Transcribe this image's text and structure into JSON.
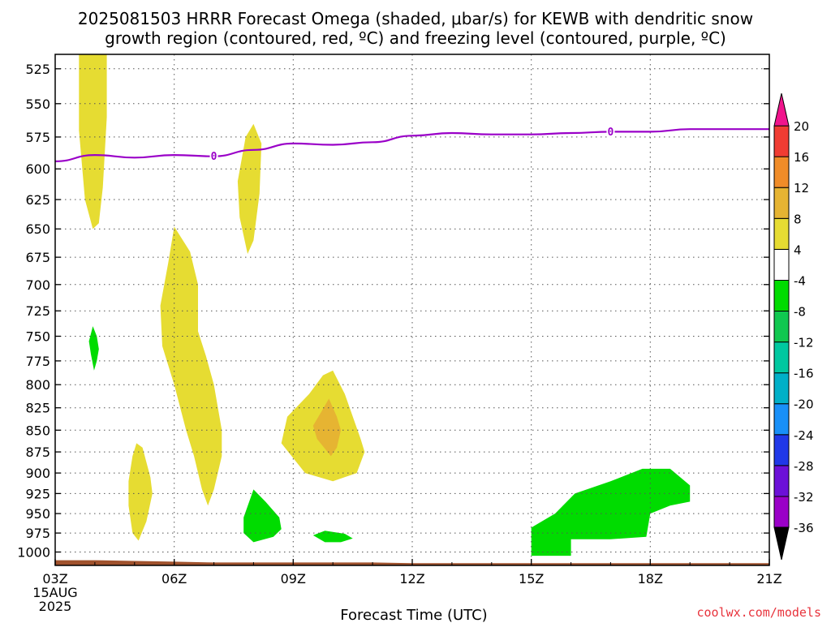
{
  "chart_data": {
    "type": "heatmap",
    "title_line1": "2025081503 HRRR Forecast Omega (shaded, μbar/s) for KEWB with dendritic snow",
    "title_line2": "growth region (contoured, red, ºC) and freezing level (contoured, purple, ºC)",
    "xlabel": "Forecast Time (UTC)",
    "credit": "coolwx.com/models",
    "x_ticks": [
      {
        "hour": 3,
        "label": "03Z",
        "sub1": "15AUG",
        "sub2": "2025"
      },
      {
        "hour": 6,
        "label": "06Z"
      },
      {
        "hour": 9,
        "label": "09Z"
      },
      {
        "hour": 12,
        "label": "12Z"
      },
      {
        "hour": 15,
        "label": "15Z"
      },
      {
        "hour": 18,
        "label": "18Z"
      },
      {
        "hour": 21,
        "label": "21Z"
      }
    ],
    "xlim_hours": [
      3,
      21
    ],
    "y_ticks": [
      525,
      550,
      575,
      600,
      625,
      650,
      675,
      700,
      725,
      750,
      775,
      800,
      825,
      850,
      875,
      900,
      925,
      950,
      975,
      1000
    ],
    "ylim_hPa": [
      1018,
      515
    ],
    "y_scale": "log-pressure (inverted)",
    "grid": true,
    "colorbar": {
      "levels": [
        -36,
        -32,
        -28,
        -24,
        -20,
        -16,
        -12,
        -8,
        -4,
        4,
        8,
        12,
        16,
        20
      ],
      "colors": [
        "#a0a0a0",
        "#9a00c8",
        "#6c10d8",
        "#2038e8",
        "#1890f8",
        "#00b0c8",
        "#00c8a0",
        "#10c850",
        "#00dc00",
        "#ffffff",
        "#e6dc32",
        "#e6b432",
        "#f08c28",
        "#f03c32",
        "#f0148c"
      ],
      "min_arrow_color": "#000000",
      "max_arrow_color": "#f0148c"
    },
    "freezing_level": {
      "label": "0",
      "color": "#9a00c8",
      "points": [
        [
          3,
          594
        ],
        [
          4,
          589
        ],
        [
          5,
          591
        ],
        [
          6,
          589
        ],
        [
          7,
          590
        ],
        [
          8,
          585
        ],
        [
          9,
          580
        ],
        [
          10,
          581
        ],
        [
          11,
          579
        ],
        [
          12,
          574
        ],
        [
          13,
          572
        ],
        [
          14,
          573
        ],
        [
          15,
          573
        ],
        [
          16,
          572
        ],
        [
          17,
          571
        ],
        [
          18,
          571
        ],
        [
          19,
          569
        ],
        [
          20,
          569
        ],
        [
          21,
          569
        ]
      ]
    },
    "omega_regions": [
      {
        "value_range": [
          4,
          8
        ],
        "color": "#e6dc32",
        "points": [
          [
            3.6,
            515
          ],
          [
            4.3,
            515
          ],
          [
            4.3,
            560
          ],
          [
            4.2,
            615
          ],
          [
            4.1,
            645
          ],
          [
            3.95,
            650
          ],
          [
            3.75,
            625
          ],
          [
            3.6,
            570
          ]
        ]
      },
      {
        "value_range": [
          4,
          8
        ],
        "color": "#e6dc32",
        "points": [
          [
            8.0,
            565
          ],
          [
            8.2,
            580
          ],
          [
            8.15,
            620
          ],
          [
            8.0,
            660
          ],
          [
            7.85,
            672
          ],
          [
            7.65,
            640
          ],
          [
            7.6,
            610
          ],
          [
            7.8,
            575
          ]
        ]
      },
      {
        "value_range": [
          4,
          8
        ],
        "color": "#e6dc32",
        "points": [
          [
            5.85,
            680
          ],
          [
            6.0,
            648
          ],
          [
            6.4,
            670
          ],
          [
            6.6,
            700
          ],
          [
            6.6,
            745
          ],
          [
            6.8,
            770
          ],
          [
            7.0,
            800
          ],
          [
            7.2,
            850
          ],
          [
            7.2,
            880
          ],
          [
            7.0,
            920
          ],
          [
            6.85,
            940
          ],
          [
            6.7,
            920
          ],
          [
            6.5,
            880
          ],
          [
            6.3,
            850
          ],
          [
            6.0,
            800
          ],
          [
            5.7,
            760
          ],
          [
            5.65,
            720
          ]
        ]
      },
      {
        "value_range": [
          4,
          8
        ],
        "color": "#e6dc32",
        "points": [
          [
            5.05,
            865
          ],
          [
            5.2,
            870
          ],
          [
            5.4,
            905
          ],
          [
            5.45,
            925
          ],
          [
            5.3,
            960
          ],
          [
            5.1,
            985
          ],
          [
            4.95,
            975
          ],
          [
            4.85,
            940
          ],
          [
            4.85,
            910
          ],
          [
            4.95,
            880
          ]
        ]
      },
      {
        "value_range": [
          4,
          8
        ],
        "color": "#e6dc32",
        "points": [
          [
            10.0,
            785
          ],
          [
            10.3,
            810
          ],
          [
            10.7,
            860
          ],
          [
            10.8,
            875
          ],
          [
            10.6,
            900
          ],
          [
            10.0,
            910
          ],
          [
            9.3,
            900
          ],
          [
            8.7,
            865
          ],
          [
            8.85,
            835
          ],
          [
            9.4,
            810
          ],
          [
            9.75,
            790
          ]
        ]
      },
      {
        "value_range": [
          8,
          12
        ],
        "color": "#e6b432",
        "points": [
          [
            9.9,
            815
          ],
          [
            10.1,
            835
          ],
          [
            10.2,
            850
          ],
          [
            10.1,
            870
          ],
          [
            9.95,
            880
          ],
          [
            9.6,
            860
          ],
          [
            9.5,
            845
          ],
          [
            9.7,
            830
          ]
        ]
      },
      {
        "value_range": [
          -8,
          -4
        ],
        "color": "#00dc00",
        "points": [
          [
            3.95,
            740
          ],
          [
            4.05,
            750
          ],
          [
            4.1,
            763
          ],
          [
            4.05,
            775
          ],
          [
            3.98,
            785
          ],
          [
            3.9,
            768
          ],
          [
            3.85,
            755
          ]
        ]
      },
      {
        "value_range": [
          -8,
          -4
        ],
        "color": "#00dc00",
        "points": [
          [
            8.0,
            920
          ],
          [
            8.3,
            935
          ],
          [
            8.65,
            955
          ],
          [
            8.7,
            970
          ],
          [
            8.5,
            980
          ],
          [
            8.0,
            987
          ],
          [
            7.75,
            975
          ],
          [
            7.75,
            955
          ]
        ]
      },
      {
        "value_range": [
          -8,
          -4
        ],
        "color": "#00dc00",
        "points": [
          [
            9.5,
            978
          ],
          [
            9.8,
            972
          ],
          [
            10.3,
            976
          ],
          [
            10.5,
            982
          ],
          [
            10.2,
            987
          ],
          [
            9.8,
            987
          ]
        ]
      },
      {
        "value_range": [
          -8,
          -4
        ],
        "color": "#00dc00",
        "points": [
          [
            15.0,
            968
          ],
          [
            15.6,
            950
          ],
          [
            16.1,
            925
          ],
          [
            17.0,
            910
          ],
          [
            17.8,
            895
          ],
          [
            18.5,
            895
          ],
          [
            19.0,
            915
          ],
          [
            19.0,
            935
          ],
          [
            18.5,
            940
          ],
          [
            18.0,
            950
          ],
          [
            17.9,
            980
          ],
          [
            17.0,
            983
          ],
          [
            16.0,
            983
          ],
          [
            16.0,
            1005
          ],
          [
            15.0,
            1005
          ]
        ]
      }
    ],
    "terrain": {
      "color": "#a0522d",
      "top_points": [
        [
          3,
          1011
        ],
        [
          4,
          1011
        ],
        [
          5,
          1012
        ],
        [
          6,
          1013
        ],
        [
          7,
          1014
        ],
        [
          8,
          1014
        ],
        [
          9,
          1014
        ],
        [
          10,
          1014
        ],
        [
          11,
          1014
        ],
        [
          12,
          1015
        ],
        [
          13,
          1015
        ],
        [
          14,
          1015
        ],
        [
          15,
          1015
        ],
        [
          16,
          1015
        ],
        [
          17,
          1015
        ],
        [
          18,
          1015
        ],
        [
          19,
          1015
        ],
        [
          20,
          1015
        ],
        [
          21,
          1015
        ]
      ]
    }
  }
}
